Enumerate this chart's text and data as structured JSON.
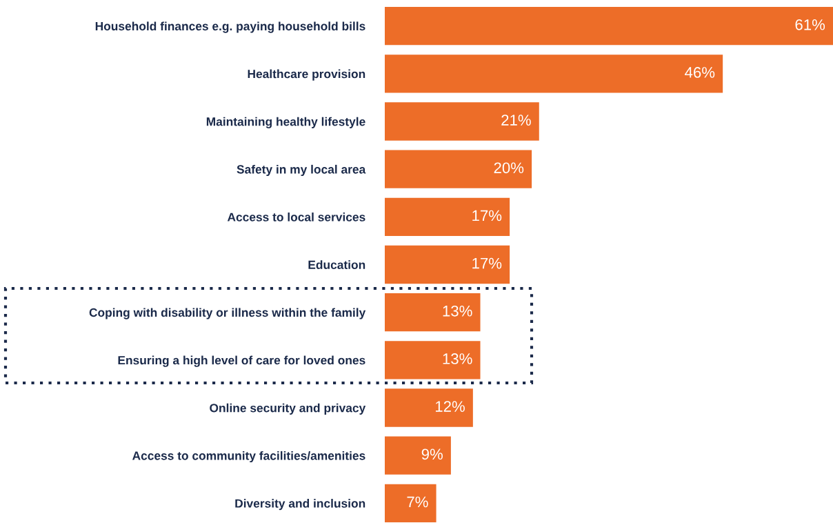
{
  "chart_data": {
    "type": "bar",
    "orientation": "horizontal",
    "categories": [
      "Household finances e.g. paying household bills",
      "Healthcare provision",
      "Maintaining healthy lifestyle",
      "Safety in my local area",
      "Access to local services",
      "Education",
      "Coping with disability or illness within the family",
      "Ensuring a high level of care for loved ones",
      "Online security and privacy",
      "Access to community facilities/amenities",
      "Diversity and inclusion"
    ],
    "values": [
      61,
      46,
      21,
      20,
      17,
      17,
      13,
      13,
      12,
      9,
      7
    ],
    "value_labels": [
      "61%",
      "46%",
      "21%",
      "20%",
      "17%",
      "17%",
      "13%",
      "13%",
      "12%",
      "9%",
      "7%"
    ],
    "color": "#ed6d28"
  }
}
